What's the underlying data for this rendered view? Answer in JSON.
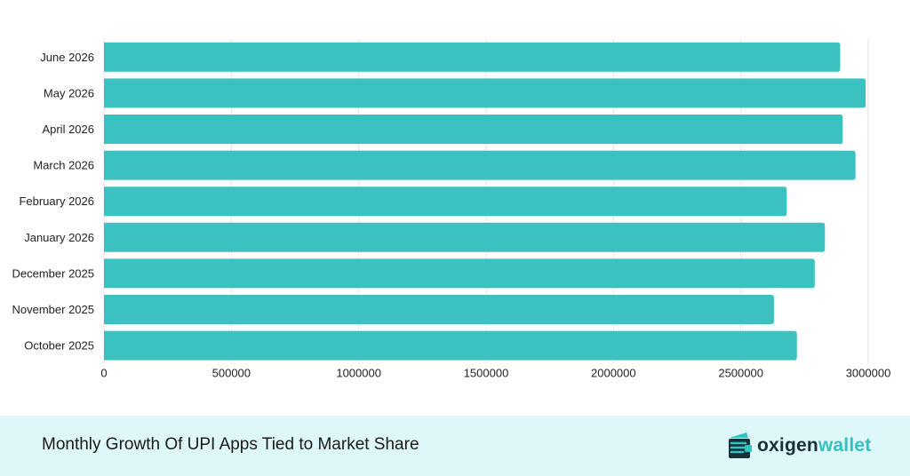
{
  "chart_data": {
    "type": "bar",
    "orientation": "horizontal",
    "categories": [
      "June 2026",
      "May 2026",
      "April 2026",
      "March 2026",
      "February 2026",
      "January 2026",
      "December 2025",
      "November 2025",
      "October 2025"
    ],
    "values": [
      2890000,
      2990000,
      2900000,
      2950000,
      2680000,
      2830000,
      2790000,
      2630000,
      2720000
    ],
    "x_ticks": [
      "0",
      "500000",
      "1000000",
      "1500000",
      "2000000",
      "2500000",
      "3000000"
    ],
    "xlim": [
      0,
      3000000
    ],
    "bar_color": "#3cc1c1",
    "grid": true,
    "legend": "none",
    "title": "",
    "xlabel": "",
    "ylabel": ""
  },
  "footer": {
    "caption": "Monthly Growth Of UPI Apps Tied to Market Share",
    "background": "#def7f8"
  },
  "brand": {
    "name_part1": "oxigen",
    "name_part2": "wallet",
    "icon": "wallet-logo-icon",
    "colors": [
      "#16303a",
      "#33c2c2"
    ]
  }
}
